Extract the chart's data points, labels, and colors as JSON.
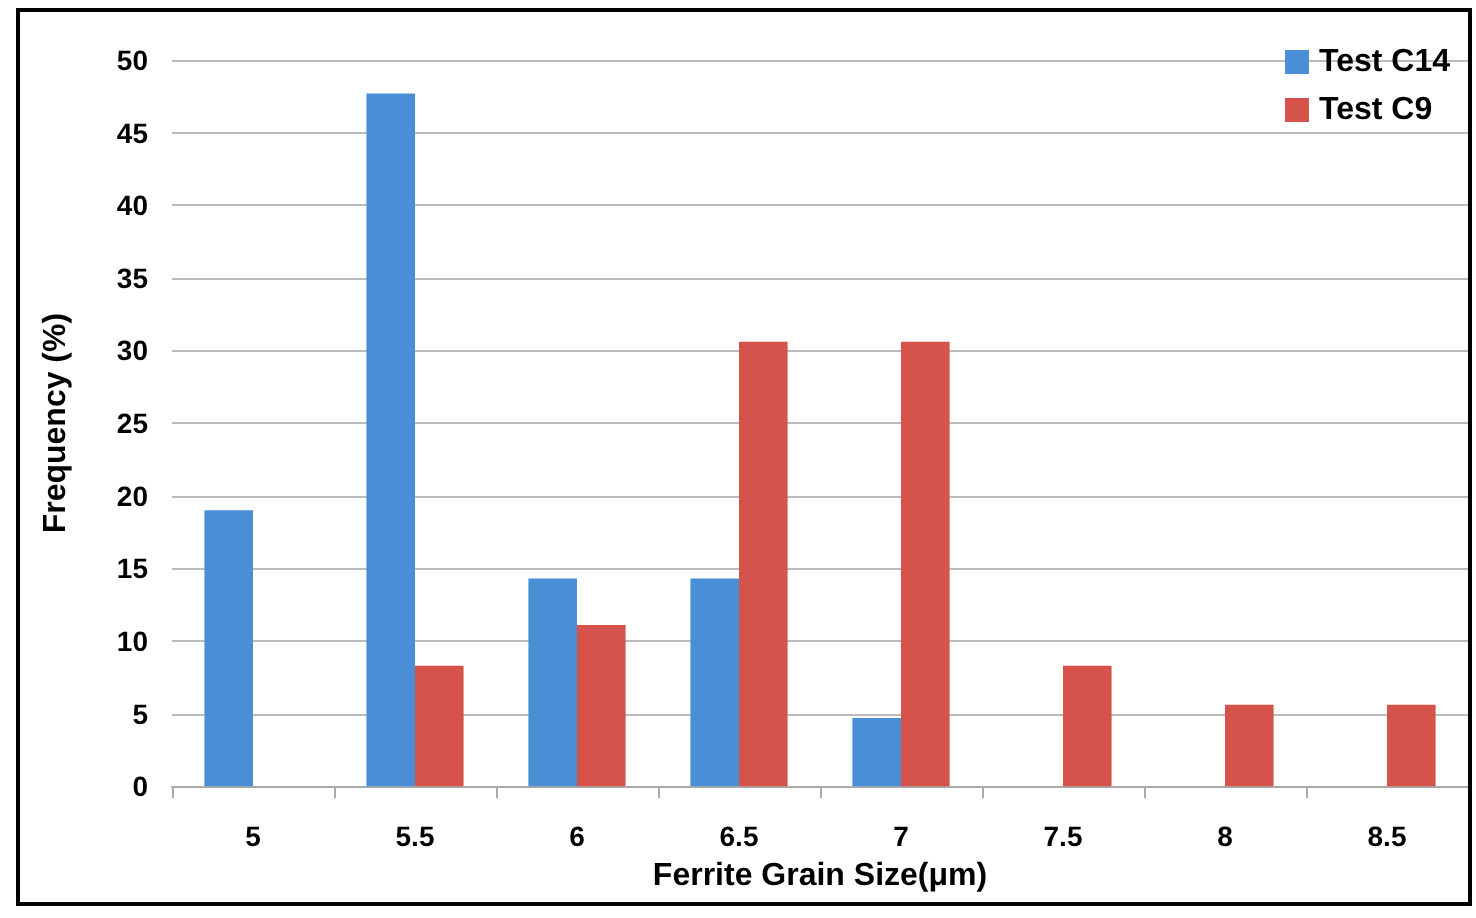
{
  "chart_data": {
    "type": "bar",
    "xlabel": "Ferrite Grain Size(μm)",
    "ylabel": "Frequency (%)",
    "categories": [
      "5",
      "5.5",
      "6",
      "6.5",
      "7",
      "7.5",
      "8",
      "8.5"
    ],
    "series": [
      {
        "name": "Test C14",
        "color": "#4a8fd6",
        "values": [
          19,
          47.7,
          14.3,
          14.3,
          4.7,
          0,
          0,
          0
        ]
      },
      {
        "name": "Test C9",
        "color": "#d5534a",
        "values": [
          0,
          8.3,
          11.1,
          30.6,
          30.6,
          8.3,
          5.6,
          5.6
        ]
      }
    ],
    "ylim": [
      0,
      50
    ],
    "yticks": [
      0,
      5,
      10,
      15,
      20,
      25,
      30,
      35,
      40,
      45,
      50
    ],
    "grid": "y",
    "legend": "top right"
  }
}
